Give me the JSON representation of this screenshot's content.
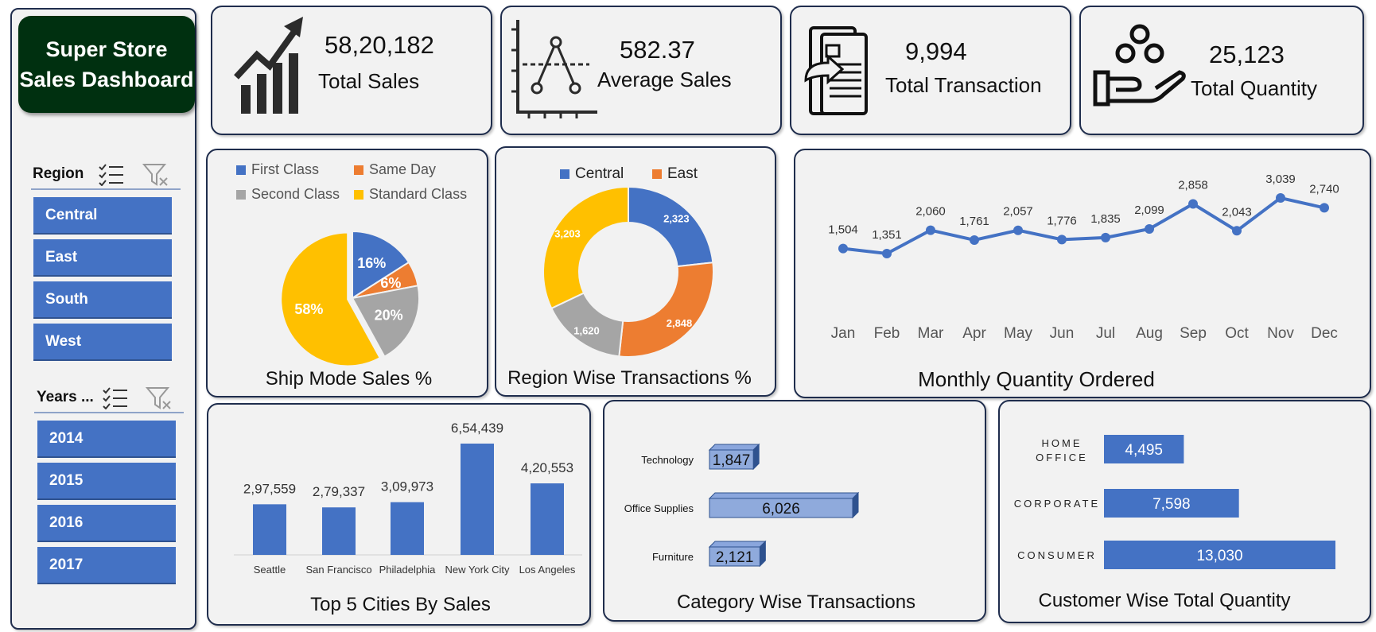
{
  "sidebar": {
    "title": "Super Store Sales Dashboard",
    "region_slicer": {
      "header": "Region",
      "items": [
        "Central",
        "East",
        "South",
        "West"
      ]
    },
    "years_slicer": {
      "header": "Years ...",
      "items": [
        "2014",
        "2015",
        "2016",
        "2017"
      ]
    }
  },
  "kpis": {
    "total_sales": {
      "value": "58,20,182",
      "label": "Total Sales",
      "icon": "chart-growth-icon"
    },
    "average_sales": {
      "value": "582.37",
      "label": "Average Sales",
      "icon": "line-graph-icon"
    },
    "total_transaction": {
      "value": "9,994",
      "label": "Total Transaction",
      "icon": "document-transfer-icon"
    },
    "total_quantity": {
      "value": "25,123",
      "label": "Total Quantity",
      "icon": "hand-coins-icon"
    }
  },
  "colors": {
    "blue": "#4472c4",
    "orange": "#ed7d31",
    "gray": "#a5a5a5",
    "yellow": "#ffc000",
    "dark_green": "#003010",
    "border": "#1f2d4d"
  },
  "chart_data": [
    {
      "id": "ship_mode",
      "type": "pie",
      "title": "Ship Mode Sales %",
      "legend": [
        "First Class",
        "Same Day",
        "Second Class",
        "Standard Class"
      ],
      "labels": [
        "16%",
        "6%",
        "20%",
        "58%"
      ],
      "values": [
        16,
        6,
        20,
        58
      ]
    },
    {
      "id": "region_transactions",
      "type": "pie",
      "title": "Region Wise Transactions %",
      "legend": [
        "Central",
        "East"
      ],
      "labels": [
        "2,323",
        "2,848",
        "1,620",
        "3,203"
      ],
      "values": [
        2323,
        2848,
        1620,
        3203
      ]
    },
    {
      "id": "monthly_quantity",
      "type": "line",
      "title": "Monthly Quantity Ordered",
      "categories": [
        "Jan",
        "Feb",
        "Mar",
        "Apr",
        "May",
        "Jun",
        "Jul",
        "Aug",
        "Sep",
        "Oct",
        "Nov",
        "Dec"
      ],
      "labels": [
        "1,504",
        "1,351",
        "2,060",
        "1,761",
        "2,057",
        "1,776",
        "1,835",
        "2,099",
        "2,858",
        "2,043",
        "3,039",
        "2,740"
      ],
      "values": [
        1504,
        1351,
        2060,
        1761,
        2057,
        1776,
        1835,
        2099,
        2858,
        2043,
        3039,
        2740
      ]
    },
    {
      "id": "top_cities",
      "type": "bar",
      "title": "Top 5 Cities By Sales",
      "categories": [
        "Seattle",
        "San Francisco",
        "Philadelphia",
        "New York City",
        "Los Angeles"
      ],
      "labels": [
        "2,97,559",
        "2,79,337",
        "3,09,973",
        "6,54,439",
        "4,20,553"
      ],
      "values": [
        297559,
        279337,
        309973,
        654439,
        420553
      ]
    },
    {
      "id": "category_transactions",
      "type": "bar",
      "title": "Category Wise Transactions",
      "categories": [
        "Technology",
        "Office Supplies",
        "Furniture"
      ],
      "labels": [
        "1,847",
        "6,026",
        "2,121"
      ],
      "values": [
        1847,
        6026,
        2121
      ]
    },
    {
      "id": "customer_quantity",
      "type": "bar",
      "title": "Customer Wise Total Quantity",
      "categories": [
        "HOME OFFICE",
        "CORPORATE",
        "CONSUMER"
      ],
      "labels": [
        "4,495",
        "7,598",
        "13,030"
      ],
      "values": [
        4495,
        7598,
        13030
      ]
    }
  ]
}
